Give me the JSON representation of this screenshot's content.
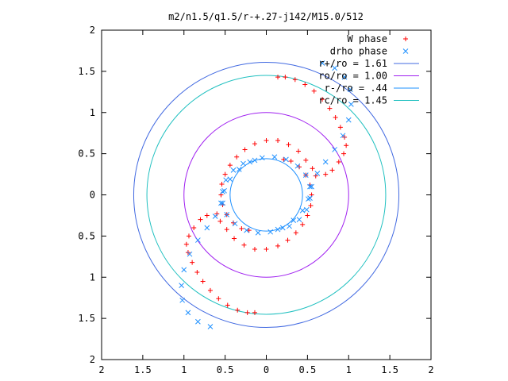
{
  "chart_data": {
    "type": "scatter",
    "title": "m2/n1.5/q1.5/r-+.27-j142/M15.0/512",
    "xlabel": "",
    "ylabel": "",
    "xlim": [
      -2,
      2
    ],
    "ylim": [
      -2,
      2
    ],
    "x_ticks": [
      -2,
      -1.5,
      -1,
      -0.5,
      0,
      0.5,
      1,
      1.5,
      2
    ],
    "y_ticks": [
      -2,
      -1.5,
      -1,
      -0.5,
      0,
      0.5,
      1,
      1.5,
      2
    ],
    "x_tick_labels": [
      "2",
      "1.5",
      "1",
      "0.5",
      "0",
      "0.5",
      "1",
      "1.5",
      "2"
    ],
    "y_tick_labels": [
      "2",
      "1.5",
      "1",
      "0.5",
      "0",
      "0.5",
      "1",
      "1.5",
      "2"
    ],
    "grid": false,
    "legend_position": "top-right",
    "circles": [
      {
        "name": "r+/ro = 1.61",
        "radius": 1.61,
        "color": "#4169e1"
      },
      {
        "name": "ro/ro = 1.00",
        "radius": 1.0,
        "color": "#a020f0"
      },
      {
        "name": "r-/ro = .44",
        "radius": 0.44,
        "color": "#1e90ff"
      },
      {
        "name": "rc/ro = 1.45",
        "radius": 1.45,
        "color": "#20c0c0"
      }
    ],
    "series": [
      {
        "name": "W phase",
        "marker": "plus",
        "color": "#ff0000",
        "points": [
          [
            0.21,
            0.43
          ],
          [
            0.3,
            0.41
          ],
          [
            0.4,
            0.34
          ],
          [
            0.48,
            0.24
          ],
          [
            0.53,
            0.12
          ],
          [
            0.55,
            0.0
          ],
          [
            0.54,
            -0.13
          ],
          [
            0.5,
            -0.25
          ],
          [
            0.44,
            -0.36
          ],
          [
            0.36,
            -0.46
          ],
          [
            0.26,
            -0.55
          ],
          [
            0.14,
            -0.62
          ],
          [
            0.0,
            -0.66
          ],
          [
            -0.14,
            -0.66
          ],
          [
            -0.27,
            -0.61
          ],
          [
            -0.39,
            -0.53
          ],
          [
            -0.48,
            -0.42
          ],
          [
            -0.56,
            -0.32
          ],
          [
            -0.6,
            -0.23
          ],
          [
            -0.72,
            -0.25
          ],
          [
            -0.8,
            -0.3
          ],
          [
            -0.88,
            -0.4
          ],
          [
            -0.94,
            -0.5
          ],
          [
            -0.97,
            -0.6
          ],
          [
            -0.95,
            -0.7
          ],
          [
            -0.9,
            -0.82
          ],
          [
            -0.84,
            -0.94
          ],
          [
            -0.77,
            -1.05
          ],
          [
            -0.68,
            -1.16
          ],
          [
            -0.58,
            -1.26
          ],
          [
            -0.47,
            -1.34
          ],
          [
            -0.35,
            -1.4
          ],
          [
            -0.23,
            -1.43
          ],
          [
            -0.14,
            -1.43
          ],
          [
            -0.21,
            -0.43
          ],
          [
            -0.3,
            -0.41
          ],
          [
            -0.4,
            -0.34
          ],
          [
            -0.48,
            -0.24
          ],
          [
            -0.53,
            -0.12
          ],
          [
            -0.55,
            0.0
          ],
          [
            -0.54,
            0.13
          ],
          [
            -0.5,
            0.25
          ],
          [
            -0.44,
            0.36
          ],
          [
            -0.36,
            0.46
          ],
          [
            -0.26,
            0.55
          ],
          [
            -0.14,
            0.62
          ],
          [
            0.0,
            0.66
          ],
          [
            0.14,
            0.66
          ],
          [
            0.27,
            0.61
          ],
          [
            0.39,
            0.53
          ],
          [
            0.48,
            0.42
          ],
          [
            0.56,
            0.32
          ],
          [
            0.6,
            0.23
          ],
          [
            0.72,
            0.25
          ],
          [
            0.8,
            0.3
          ],
          [
            0.88,
            0.4
          ],
          [
            0.94,
            0.5
          ],
          [
            0.97,
            0.6
          ],
          [
            0.95,
            0.7
          ],
          [
            0.9,
            0.82
          ],
          [
            0.84,
            0.94
          ],
          [
            0.77,
            1.05
          ],
          [
            0.68,
            1.16
          ],
          [
            0.58,
            1.26
          ],
          [
            0.47,
            1.34
          ],
          [
            0.35,
            1.4
          ],
          [
            0.23,
            1.43
          ],
          [
            0.14,
            1.43
          ]
        ]
      },
      {
        "name": "drho phase",
        "marker": "cross",
        "color": "#1e90ff",
        "points": [
          [
            -0.14,
            0.42
          ],
          [
            -0.28,
            0.38
          ],
          [
            -0.4,
            0.3
          ],
          [
            -0.49,
            0.18
          ],
          [
            -0.53,
            0.04
          ],
          [
            -0.53,
            -0.1
          ],
          [
            -0.48,
            -0.24
          ],
          [
            -0.38,
            -0.35
          ],
          [
            -0.24,
            -0.43
          ],
          [
            -0.1,
            -0.46
          ],
          [
            0.05,
            -0.45
          ],
          [
            0.2,
            -0.4
          ],
          [
            0.33,
            -0.31
          ],
          [
            0.44,
            -0.19
          ],
          [
            0.51,
            -0.05
          ],
          [
            0.55,
            0.1
          ],
          [
            0.62,
            0.26
          ],
          [
            0.72,
            0.4
          ],
          [
            0.83,
            0.55
          ],
          [
            0.93,
            0.72
          ],
          [
            1.0,
            0.91
          ],
          [
            1.03,
            1.1
          ],
          [
            1.02,
            1.28
          ],
          [
            0.95,
            1.43
          ],
          [
            0.83,
            1.54
          ],
          [
            0.68,
            1.6
          ],
          [
            0.14,
            -0.42
          ],
          [
            0.28,
            -0.38
          ],
          [
            0.4,
            -0.3
          ],
          [
            0.49,
            -0.18
          ],
          [
            0.53,
            -0.04
          ],
          [
            0.53,
            0.1
          ],
          [
            0.48,
            0.24
          ],
          [
            0.38,
            0.35
          ],
          [
            0.24,
            0.43
          ],
          [
            0.1,
            0.46
          ],
          [
            -0.05,
            0.45
          ],
          [
            -0.2,
            0.4
          ],
          [
            -0.33,
            0.31
          ],
          [
            -0.44,
            0.19
          ],
          [
            -0.51,
            0.05
          ],
          [
            -0.55,
            -0.1
          ],
          [
            -0.62,
            -0.26
          ],
          [
            -0.72,
            -0.4
          ],
          [
            -0.83,
            -0.55
          ],
          [
            -0.93,
            -0.72
          ],
          [
            -1.0,
            -0.91
          ],
          [
            -1.03,
            -1.1
          ],
          [
            -1.02,
            -1.28
          ],
          [
            -0.95,
            -1.43
          ],
          [
            -0.83,
            -1.54
          ],
          [
            -0.68,
            -1.6
          ]
        ]
      }
    ]
  }
}
